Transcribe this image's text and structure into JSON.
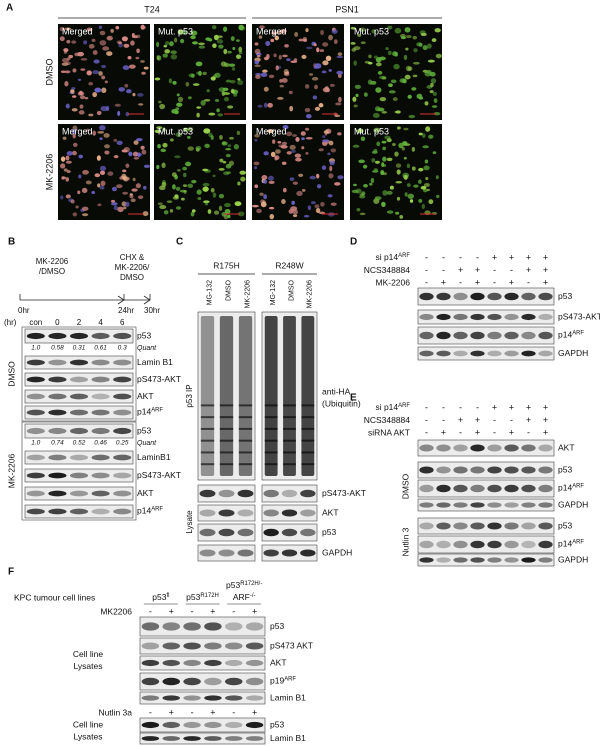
{
  "panels": {
    "a": {
      "letter": "A",
      "columns": [
        "T24",
        "PSN1"
      ],
      "rows": [
        "DMSO",
        "MK-2206"
      ],
      "tiles": [
        [
          "Merged",
          "Mut. p53",
          "Merged",
          "Mut. p53"
        ],
        [
          "Merged",
          "Mut. p53",
          "Merged",
          "Mut. p53"
        ]
      ]
    },
    "b": {
      "letter": "B",
      "treatment_1": [
        "MK-2206",
        "/DMSO"
      ],
      "treatment_2": [
        "CHX &",
        "MK-2206/",
        "DMSO"
      ],
      "timepoints": [
        "0hr",
        "24hr",
        "30hr"
      ],
      "lane_header": "(hr)",
      "lanes": [
        "con",
        "0",
        "2",
        "4",
        "6"
      ],
      "groups": [
        {
          "name": "DMSO",
          "quant_label": "Quant",
          "quant": [
            "1.0",
            "0.58",
            "0.31",
            "0.61",
            "0.3"
          ],
          "blots": [
            "p53",
            "Lamin B1",
            "pS473-AKT",
            "AKT",
            {
              "base": "p14",
              "sup": "ARF"
            }
          ]
        },
        {
          "name": "MK-2206",
          "quant_label": "Quant",
          "quant": [
            "1.0",
            "0.74",
            "0.52",
            "0.46",
            "0.25"
          ],
          "blots": [
            "p53",
            "LaminB1",
            "pS473-AKT",
            "AKT",
            {
              "base": "p14",
              "sup": "ARF"
            }
          ]
        }
      ]
    },
    "c": {
      "letter": "C",
      "mutants": [
        {
          "name": "R175H",
          "lanes": [
            "MG-132",
            "DMSO",
            "MK-2206"
          ]
        },
        {
          "name": "R248W",
          "lanes": [
            "MG-132",
            "DMSO",
            "MK-2206"
          ]
        }
      ],
      "ip_label": "p53 IP",
      "ip_blot": [
        "anti-HA",
        "(Ubiquitin)"
      ],
      "lysate_label": "Lysate",
      "lysate_blots": [
        "pS473-AKT",
        "AKT",
        "p53",
        "GAPDH"
      ]
    },
    "d": {
      "letter": "D",
      "conditions": [
        {
          "name": {
            "base": "si p14",
            "sup": "ARF"
          },
          "signs": [
            "-",
            "-",
            "-",
            "-",
            "+",
            "+",
            "+",
            "+"
          ]
        },
        {
          "name": "NCS348884",
          "signs": [
            "-",
            "-",
            "+",
            "+",
            "-",
            "-",
            "+",
            "+"
          ]
        },
        {
          "name": "MK-2206",
          "signs": [
            "-",
            "+",
            "-",
            "+",
            "-",
            "+",
            "-",
            "+"
          ]
        }
      ],
      "blots": [
        "p53",
        "pS473-AKT",
        {
          "base": "p14",
          "sup": "ARF"
        },
        "GAPDH"
      ]
    },
    "e": {
      "letter": "E",
      "conditions": [
        {
          "name": {
            "base": "si p14",
            "sup": "ARF"
          },
          "signs": [
            "-",
            "-",
            "-",
            "-",
            "+",
            "+",
            "+",
            "+"
          ]
        },
        {
          "name": "NCS348884",
          "signs": [
            "-",
            "-",
            "+",
            "+",
            "-",
            "-",
            "+",
            "+"
          ]
        },
        {
          "name": "siRNA AKT",
          "signs": [
            "-",
            "+",
            "-",
            "+",
            "-",
            "+",
            "-",
            "+"
          ]
        }
      ],
      "top_blot": "AKT",
      "groups": [
        {
          "name": "DMSO",
          "blots": [
            "p53",
            {
              "base": "p14",
              "sup": "ARF"
            },
            "GAPDH"
          ]
        },
        {
          "name": "Nutlin 3",
          "blots": [
            "p53",
            {
              "base": "p14",
              "sup": "ARF"
            },
            "GAPDH"
          ]
        }
      ]
    },
    "f": {
      "letter": "F",
      "title": "KPC tumour cell lines",
      "lines": [
        [
          {
            "base": "p53",
            "sup": "fl"
          }
        ],
        [
          {
            "base": "p53",
            "sup": "R172H"
          }
        ],
        [
          {
            "base": "p53",
            "sup": "R172H/-"
          },
          {
            "base": "ARF",
            "sup": "-/-"
          }
        ]
      ],
      "sections": [
        {
          "treatment": "MK2206",
          "signs": [
            "-",
            "+",
            "-",
            "+",
            "-",
            "+"
          ],
          "lysate_label": [
            "Cell line",
            "Lysates"
          ],
          "blots": [
            "p53",
            "pS473 AKT",
            "AKT",
            {
              "base": "p19",
              "sup": "ARF"
            },
            "Lamin B1"
          ]
        },
        {
          "treatment": "Nutlin 3a",
          "signs": [
            "-",
            "+",
            "-",
            "+",
            "-",
            "+"
          ],
          "lysate_label": [
            "Cell line",
            "Lysates"
          ],
          "blots": [
            "p53",
            "Lamin B1"
          ]
        }
      ]
    }
  }
}
